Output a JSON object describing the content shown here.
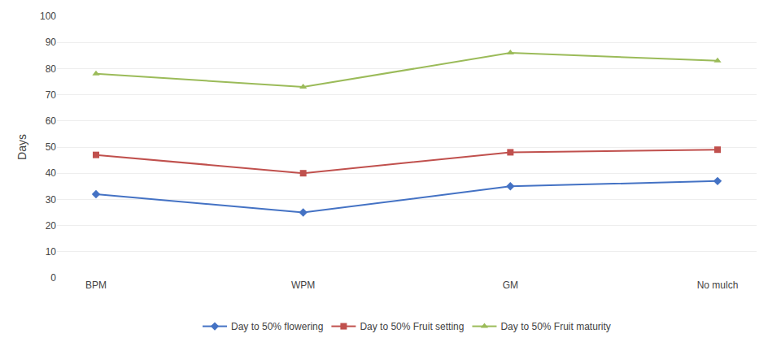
{
  "chart_data": {
    "type": "line",
    "categories": [
      "BPM",
      "WPM",
      "GM",
      "No mulch"
    ],
    "series": [
      {
        "name": "Day to 50% flowering",
        "color": "#4472C4",
        "marker": "diamond",
        "values": [
          32,
          25,
          35,
          37
        ]
      },
      {
        "name": "Day to 50% Fruit setting",
        "color": "#C0504D",
        "marker": "square",
        "values": [
          47,
          40,
          48,
          49
        ]
      },
      {
        "name": "Day to 50% Fruit maturity",
        "color": "#9BBB59",
        "marker": "triangle",
        "values": [
          78,
          73,
          86,
          83
        ]
      }
    ],
    "ylabel": "Days",
    "ylim": [
      0,
      100
    ],
    "yticks": [
      0,
      10,
      20,
      30,
      40,
      50,
      60,
      70,
      80,
      90,
      100
    ],
    "grid": true,
    "legend": "bottom"
  }
}
